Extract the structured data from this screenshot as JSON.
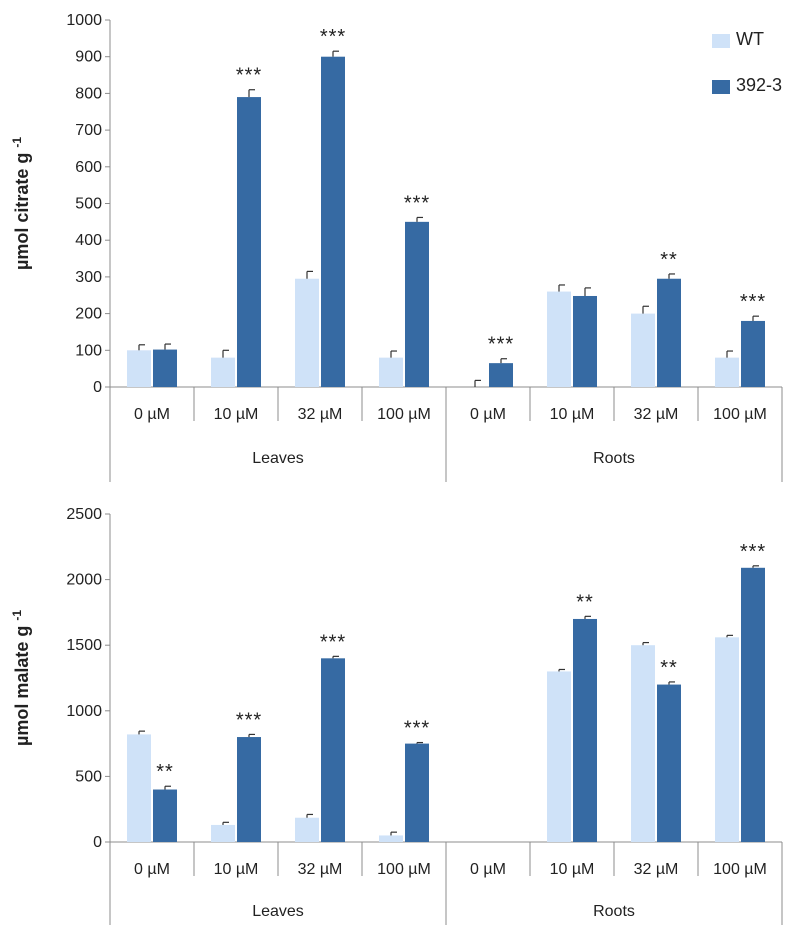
{
  "colors": {
    "WT": "#cfe2f8",
    "392-3": "#366aa3",
    "axis": "#8c8c8c",
    "error": "#333333"
  },
  "legend": [
    {
      "name": "WT"
    },
    {
      "name": "392-3"
    }
  ],
  "chart_data": [
    {
      "type": "bar",
      "ylabel": "µmol citrate g",
      "ylabel_sup": "-1",
      "ylim": [
        0,
        1000
      ],
      "yticks": [
        0,
        100,
        200,
        300,
        400,
        500,
        600,
        700,
        800,
        900,
        1000
      ],
      "groups": [
        "Leaves",
        "Roots"
      ],
      "categories": [
        "0 µM",
        "10 µM",
        "32 µM",
        "100 µM",
        "0 µM",
        "10 µM",
        "32 µM",
        "100 µM"
      ],
      "legend_position": "top-right",
      "grid": false,
      "series": [
        {
          "name": "WT",
          "values": [
            100,
            80,
            295,
            80,
            0,
            260,
            200,
            80
          ],
          "errors": [
            15,
            20,
            20,
            18,
            18,
            18,
            20,
            18
          ]
        },
        {
          "name": "392-3",
          "values": [
            102,
            790,
            900,
            450,
            65,
            248,
            295,
            180
          ],
          "errors": [
            15,
            20,
            15,
            12,
            12,
            22,
            13,
            13
          ]
        }
      ],
      "significance": [
        {
          "series": "392-3",
          "index": 1,
          "label": "***"
        },
        {
          "series": "392-3",
          "index": 2,
          "label": "***"
        },
        {
          "series": "392-3",
          "index": 3,
          "label": "***"
        },
        {
          "series": "392-3",
          "index": 4,
          "label": "***"
        },
        {
          "series": "392-3",
          "index": 6,
          "label": "**"
        },
        {
          "series": "392-3",
          "index": 7,
          "label": "***"
        }
      ]
    },
    {
      "type": "bar",
      "ylabel": "µmol malate g",
      "ylabel_sup": "-1",
      "ylim": [
        0,
        2500
      ],
      "yticks": [
        0,
        500,
        1000,
        1500,
        2000,
        2500
      ],
      "groups": [
        "Leaves",
        "Roots"
      ],
      "categories": [
        "0 µM",
        "10 µM",
        "32 µM",
        "100 µM",
        "0 µM",
        "10 µM",
        "32 µM",
        "100 µM"
      ],
      "grid": false,
      "series": [
        {
          "name": "WT",
          "values": [
            820,
            130,
            185,
            50,
            0,
            1300,
            1500,
            1560
          ],
          "errors": [
            25,
            20,
            25,
            25,
            0,
            15,
            20,
            15
          ]
        },
        {
          "name": "392-3",
          "values": [
            400,
            800,
            1400,
            750,
            0,
            1700,
            1200,
            2090
          ],
          "errors": [
            25,
            20,
            15,
            8,
            0,
            20,
            20,
            15
          ]
        }
      ],
      "significance": [
        {
          "series": "392-3",
          "index": 0,
          "label": "**"
        },
        {
          "series": "392-3",
          "index": 1,
          "label": "***"
        },
        {
          "series": "392-3",
          "index": 2,
          "label": "***"
        },
        {
          "series": "392-3",
          "index": 3,
          "label": "***"
        },
        {
          "series": "392-3",
          "index": 5,
          "label": "**"
        },
        {
          "series": "392-3",
          "index": 6,
          "label": "**"
        },
        {
          "series": "392-3",
          "index": 7,
          "label": "***"
        }
      ]
    }
  ]
}
